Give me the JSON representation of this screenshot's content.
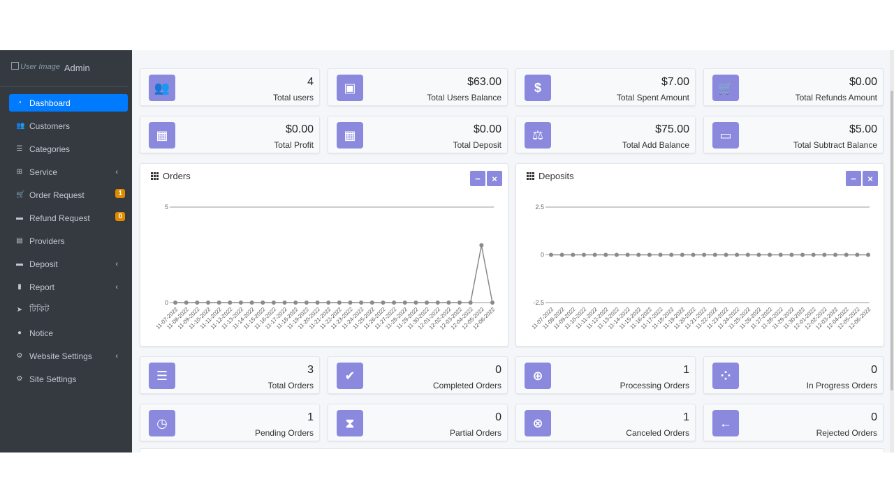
{
  "brand": {
    "image_alt": "User Image",
    "name": "Admin"
  },
  "sidebar": {
    "items": [
      {
        "label": "Dashboard",
        "icon": "dashboard-icon",
        "glyph": "◔",
        "active": true
      },
      {
        "label": "Customers",
        "icon": "users-icon",
        "glyph": "👥"
      },
      {
        "label": "Categories",
        "icon": "list-icon",
        "glyph": "☰"
      },
      {
        "label": "Service",
        "icon": "sitemap-icon",
        "glyph": "⊞",
        "chevron": "‹"
      },
      {
        "label": "Order Request",
        "icon": "cart-icon",
        "glyph": "🛒",
        "badge": "1"
      },
      {
        "label": "Refund Request",
        "icon": "money-icon",
        "glyph": "▬",
        "badge": "0"
      },
      {
        "label": "Providers",
        "icon": "table-icon",
        "glyph": "▤"
      },
      {
        "label": "Deposit",
        "icon": "money-icon",
        "glyph": "▬",
        "chevron": "‹"
      },
      {
        "label": "Report",
        "icon": "file-icon",
        "glyph": "▮",
        "chevron": "‹"
      },
      {
        "label": "টিকিট",
        "icon": "send-icon",
        "glyph": "➤"
      },
      {
        "label": "Notice",
        "icon": "info-icon",
        "glyph": "●"
      },
      {
        "label": "Website Settings",
        "icon": "cogs-icon",
        "glyph": "⚙",
        "chevron": "‹"
      },
      {
        "label": "Site Settings",
        "icon": "cog-icon",
        "glyph": "⚙"
      }
    ]
  },
  "stats_top": [
    {
      "value": "4",
      "label": "Total users",
      "icon": "users-icon",
      "glyph": "👥"
    },
    {
      "value": "$63.00",
      "label": "Total Users Balance",
      "icon": "money-bill-icon",
      "glyph": "▣"
    },
    {
      "value": "$7.00",
      "label": "Total Spent Amount",
      "icon": "dollar-icon",
      "glyph": "$"
    },
    {
      "value": "$0.00",
      "label": "Total Refunds Amount",
      "icon": "cart-plus-icon",
      "glyph": "🛒"
    },
    {
      "value": "$0.00",
      "label": "Total Profit",
      "icon": "calculator-icon",
      "glyph": "▦"
    },
    {
      "value": "$0.00",
      "label": "Total Deposit",
      "icon": "calculator-icon",
      "glyph": "▦"
    },
    {
      "value": "$75.00",
      "label": "Total Add Balance",
      "icon": "balance-scale-icon",
      "glyph": "⚖"
    },
    {
      "value": "$5.00",
      "label": "Total Subtract Balance",
      "icon": "ticket-icon",
      "glyph": "▭"
    }
  ],
  "stats_bottom": [
    {
      "value": "3",
      "label": "Total Orders",
      "icon": "bars-icon",
      "glyph": "☰"
    },
    {
      "value": "0",
      "label": "Completed Orders",
      "icon": "check-icon",
      "glyph": "✔"
    },
    {
      "value": "1",
      "label": "Processing Orders",
      "icon": "plus-circle-icon",
      "glyph": "⊕"
    },
    {
      "value": "0",
      "label": "In Progress Orders",
      "icon": "spinner-icon",
      "glyph": "⁘"
    },
    {
      "value": "1",
      "label": "Pending Orders",
      "icon": "clock-icon",
      "glyph": "◷"
    },
    {
      "value": "0",
      "label": "Partial Orders",
      "icon": "hourglass-icon",
      "glyph": "⧗"
    },
    {
      "value": "1",
      "label": "Canceled Orders",
      "icon": "times-circle-icon",
      "glyph": "⊗"
    },
    {
      "value": "0",
      "label": "Rejected Orders",
      "icon": "arrow-left-icon",
      "glyph": "←"
    }
  ],
  "widget_buttons": {
    "minimize": "−",
    "close": "×"
  },
  "colors": {
    "accent": "#8a89de",
    "sidebar_bg": "#343a40",
    "active": "#007bff",
    "badge": "#e08a00",
    "line": "#8a8a8a"
  },
  "chart_data": [
    {
      "type": "line",
      "title": "Orders",
      "x": [
        "11-07-2022",
        "11-08-2022",
        "11-09-2022",
        "11-10-2022",
        "11-11-2022",
        "11-12-2022",
        "11-13-2022",
        "11-14-2022",
        "11-15-2022",
        "11-16-2022",
        "11-17-2022",
        "11-18-2022",
        "11-19-2022",
        "11-20-2022",
        "11-21-2022",
        "11-22-2022",
        "11-23-2022",
        "11-24-2022",
        "11-25-2022",
        "11-26-2022",
        "11-27-2022",
        "11-28-2022",
        "11-29-2022",
        "11-30-2022",
        "12-01-2022",
        "12-02-2022",
        "12-03-2022",
        "12-04-2022",
        "12-05-2022",
        "12-06-2022"
      ],
      "values": [
        0,
        0,
        0,
        0,
        0,
        0,
        0,
        0,
        0,
        0,
        0,
        0,
        0,
        0,
        0,
        0,
        0,
        0,
        0,
        0,
        0,
        0,
        0,
        0,
        0,
        0,
        0,
        0,
        3,
        0
      ],
      "yticks": [
        "0",
        "5"
      ],
      "ylim": [
        0,
        5
      ]
    },
    {
      "type": "line",
      "title": "Deposits",
      "x": [
        "11-07-2022",
        "11-08-2022",
        "11-09-2022",
        "11-10-2022",
        "11-11-2022",
        "11-12-2022",
        "11-13-2022",
        "11-14-2022",
        "11-15-2022",
        "11-16-2022",
        "11-17-2022",
        "11-18-2022",
        "11-19-2022",
        "11-20-2022",
        "11-21-2022",
        "11-22-2022",
        "11-23-2022",
        "11-24-2022",
        "11-25-2022",
        "11-26-2022",
        "11-27-2022",
        "11-28-2022",
        "11-29-2022",
        "11-30-2022",
        "12-01-2022",
        "12-02-2022",
        "12-03-2022",
        "12-04-2022",
        "12-05-2022",
        "12-06-2022"
      ],
      "values": [
        0,
        0,
        0,
        0,
        0,
        0,
        0,
        0,
        0,
        0,
        0,
        0,
        0,
        0,
        0,
        0,
        0,
        0,
        0,
        0,
        0,
        0,
        0,
        0,
        0,
        0,
        0,
        0,
        0,
        0
      ],
      "yticks": [
        "-2.5",
        "0",
        "2.5"
      ],
      "ylim": [
        -2.5,
        2.5
      ]
    }
  ]
}
